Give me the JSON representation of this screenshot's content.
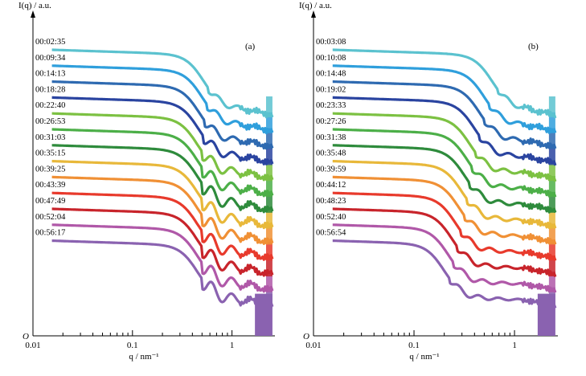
{
  "figure": {
    "y_axis_label": "I(q) / a.u.",
    "x_axis_label": "q / nm⁻¹",
    "origin_label": "O",
    "x_tick_labels": [
      "0.01",
      "0.1",
      "1"
    ]
  },
  "chart_data": [
    {
      "type": "line",
      "panel": "(a)",
      "xlabel": "q / nm⁻¹",
      "ylabel": "I(q) / a.u.",
      "xscale": "log",
      "yscale": "log",
      "xlim": [
        0.01,
        2.7
      ],
      "x_ticks": [
        "0.01",
        "0.1",
        "1"
      ],
      "y_origin_label": "O",
      "curve_start_q": 0.0155,
      "curve_end_q": 2.55,
      "series": [
        {
          "name": "00:02:35",
          "color": "#5bc2cf",
          "knee_q": 0.52,
          "oscillation": 0.2
        },
        {
          "name": "00:09:34",
          "color": "#2f9fdc",
          "knee_q": 0.5,
          "oscillation": 0.3
        },
        {
          "name": "00:14:13",
          "color": "#2e6ab1",
          "knee_q": 0.47,
          "oscillation": 0.4
        },
        {
          "name": "00:18:28",
          "color": "#2a44a0",
          "knee_q": 0.46,
          "oscillation": 0.55
        },
        {
          "name": "00:22:40",
          "color": "#7cc142",
          "knee_q": 0.45,
          "oscillation": 0.7
        },
        {
          "name": "00:26:53",
          "color": "#4caf48",
          "knee_q": 0.45,
          "oscillation": 0.85
        },
        {
          "name": "00:31:03",
          "color": "#2e8b3c",
          "knee_q": 0.45,
          "oscillation": 1.0
        },
        {
          "name": "00:35:15",
          "color": "#e8b83a",
          "knee_q": 0.45,
          "oscillation": 1.0
        },
        {
          "name": "00:39:25",
          "color": "#f09035",
          "knee_q": 0.45,
          "oscillation": 1.0
        },
        {
          "name": "00:43:39",
          "color": "#e83a2c",
          "knee_q": 0.45,
          "oscillation": 1.0
        },
        {
          "name": "00:47:49",
          "color": "#c8242b",
          "knee_q": 0.45,
          "oscillation": 1.0
        },
        {
          "name": "00:52:04",
          "color": "#b058a8",
          "knee_q": 0.45,
          "oscillation": 1.0
        },
        {
          "name": "00:56:17",
          "color": "#8a62b0",
          "knee_q": 0.45,
          "oscillation": 1.0
        }
      ]
    },
    {
      "type": "line",
      "panel": "(b)",
      "xlabel": "q / nm⁻¹",
      "ylabel": "I(q) / a.u.",
      "xscale": "log",
      "yscale": "log",
      "xlim": [
        0.01,
        2.7
      ],
      "x_ticks": [
        "0.01",
        "0.1",
        "1"
      ],
      "y_origin_label": "O",
      "curve_start_q": 0.0155,
      "curve_end_q": 2.55,
      "series": [
        {
          "name": "00:03:08",
          "color": "#5bc2cf",
          "knee_q": 0.6,
          "oscillation": 0.1
        },
        {
          "name": "00:10:08",
          "color": "#2f9fdc",
          "knee_q": 0.5,
          "oscillation": 0.12
        },
        {
          "name": "00:14:48",
          "color": "#2e6ab1",
          "knee_q": 0.45,
          "oscillation": 0.15
        },
        {
          "name": "00:19:02",
          "color": "#2a44a0",
          "knee_q": 0.4,
          "oscillation": 0.15
        },
        {
          "name": "00:23:33",
          "color": "#7cc142",
          "knee_q": 0.36,
          "oscillation": 0.18
        },
        {
          "name": "00:27:26",
          "color": "#4caf48",
          "knee_q": 0.34,
          "oscillation": 0.18
        },
        {
          "name": "00:31:38",
          "color": "#2e8b3c",
          "knee_q": 0.32,
          "oscillation": 0.2
        },
        {
          "name": "00:35:48",
          "color": "#e8b83a",
          "knee_q": 0.3,
          "oscillation": 0.2
        },
        {
          "name": "00:39:59",
          "color": "#f09035",
          "knee_q": 0.28,
          "oscillation": 0.2
        },
        {
          "name": "00:44:12",
          "color": "#e83a2c",
          "knee_q": 0.26,
          "oscillation": 0.2
        },
        {
          "name": "00:48:23",
          "color": "#c8242b",
          "knee_q": 0.24,
          "oscillation": 0.2
        },
        {
          "name": "00:52:40",
          "color": "#b058a8",
          "knee_q": 0.22,
          "oscillation": 0.2
        },
        {
          "name": "00:56:54",
          "color": "#8a62b0",
          "knee_q": 0.2,
          "oscillation": 0.2
        }
      ]
    }
  ]
}
